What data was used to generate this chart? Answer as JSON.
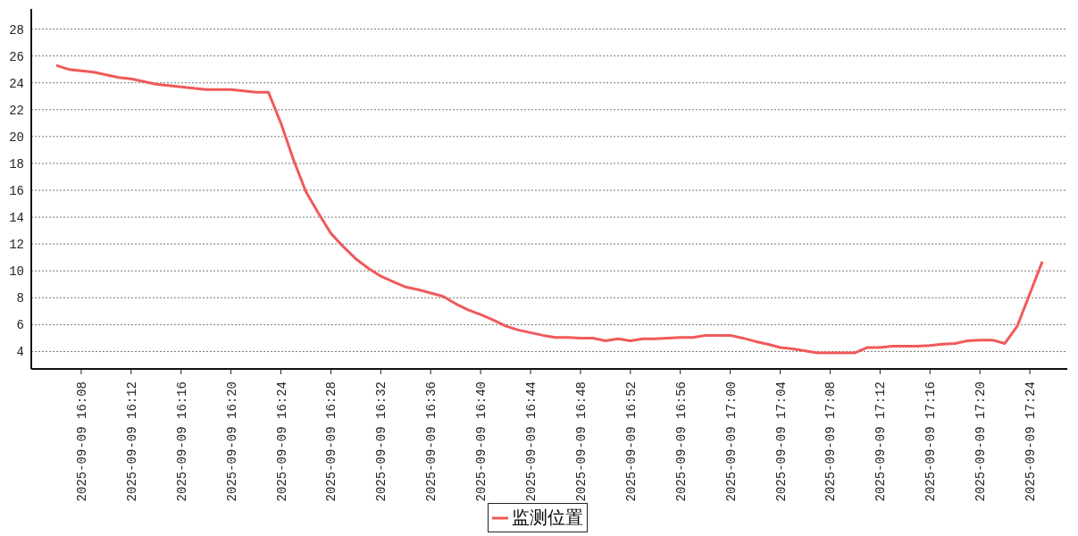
{
  "chart_data": {
    "type": "line",
    "x": [
      "2025-09-09T16:06",
      "2025-09-09T16:07",
      "2025-09-09T16:08",
      "2025-09-09T16:09",
      "2025-09-09T16:10",
      "2025-09-09T16:11",
      "2025-09-09T16:12",
      "2025-09-09T16:13",
      "2025-09-09T16:14",
      "2025-09-09T16:15",
      "2025-09-09T16:16",
      "2025-09-09T16:17",
      "2025-09-09T16:18",
      "2025-09-09T16:19",
      "2025-09-09T16:20",
      "2025-09-09T16:21",
      "2025-09-09T16:22",
      "2025-09-09T16:23",
      "2025-09-09T16:24",
      "2025-09-09T16:25",
      "2025-09-09T16:26",
      "2025-09-09T16:27",
      "2025-09-09T16:28",
      "2025-09-09T16:29",
      "2025-09-09T16:30",
      "2025-09-09T16:31",
      "2025-09-09T16:32",
      "2025-09-09T16:33",
      "2025-09-09T16:34",
      "2025-09-09T16:35",
      "2025-09-09T16:36",
      "2025-09-09T16:37",
      "2025-09-09T16:38",
      "2025-09-09T16:39",
      "2025-09-09T16:40",
      "2025-09-09T16:41",
      "2025-09-09T16:42",
      "2025-09-09T16:43",
      "2025-09-09T16:44",
      "2025-09-09T16:45",
      "2025-09-09T16:46",
      "2025-09-09T16:47",
      "2025-09-09T16:48",
      "2025-09-09T16:49",
      "2025-09-09T16:50",
      "2025-09-09T16:51",
      "2025-09-09T16:52",
      "2025-09-09T16:53",
      "2025-09-09T16:54",
      "2025-09-09T16:55",
      "2025-09-09T16:56",
      "2025-09-09T16:57",
      "2025-09-09T16:58",
      "2025-09-09T16:59",
      "2025-09-09T17:00",
      "2025-09-09T17:01",
      "2025-09-09T17:02",
      "2025-09-09T17:03",
      "2025-09-09T17:04",
      "2025-09-09T17:05",
      "2025-09-09T17:06",
      "2025-09-09T17:07",
      "2025-09-09T17:08",
      "2025-09-09T17:09",
      "2025-09-09T17:10",
      "2025-09-09T17:11",
      "2025-09-09T17:12",
      "2025-09-09T17:13",
      "2025-09-09T17:14",
      "2025-09-09T17:15",
      "2025-09-09T17:16",
      "2025-09-09T17:17",
      "2025-09-09T17:18",
      "2025-09-09T17:19",
      "2025-09-09T17:20",
      "2025-09-09T17:21",
      "2025-09-09T17:22",
      "2025-09-09T17:23",
      "2025-09-09T17:24",
      "2025-09-09T17:25"
    ],
    "series": [
      {
        "name": "监测位置",
        "color": "#f05a5a",
        "values": [
          25.3,
          25.0,
          24.9,
          24.8,
          24.6,
          24.4,
          24.3,
          24.1,
          23.9,
          23.8,
          23.7,
          23.6,
          23.5,
          23.5,
          23.5,
          23.4,
          23.3,
          23.3,
          21.0,
          18.3,
          15.9,
          14.3,
          12.8,
          11.8,
          10.9,
          10.2,
          9.6,
          9.2,
          8.8,
          8.6,
          8.35,
          8.1,
          7.55,
          7.1,
          6.75,
          6.35,
          5.9,
          5.6,
          5.4,
          5.2,
          5.05,
          5.05,
          5.0,
          5.0,
          4.8,
          4.95,
          4.8,
          4.95,
          4.95,
          5.0,
          5.05,
          5.05,
          5.2,
          5.2,
          5.2,
          5.0,
          4.75,
          4.55,
          4.3,
          4.2,
          4.05,
          3.9,
          3.9,
          3.9,
          3.9,
          4.3,
          4.3,
          4.4,
          4.4,
          4.4,
          4.45,
          4.55,
          4.6,
          4.8,
          4.85,
          4.85,
          4.6,
          5.9,
          8.3,
          10.7
        ]
      }
    ],
    "xlim": [
      "2025-09-09T16:04",
      "2025-09-09T17:27"
    ],
    "xticks": [
      {
        "value": "2025-09-09T16:08",
        "label": "2025-09-09 16:08"
      },
      {
        "value": "2025-09-09T16:12",
        "label": "2025-09-09 16:12"
      },
      {
        "value": "2025-09-09T16:16",
        "label": "2025-09-09 16:16"
      },
      {
        "value": "2025-09-09T16:20",
        "label": "2025-09-09 16:20"
      },
      {
        "value": "2025-09-09T16:24",
        "label": "2025-09-09 16:24"
      },
      {
        "value": "2025-09-09T16:28",
        "label": "2025-09-09 16:28"
      },
      {
        "value": "2025-09-09T16:32",
        "label": "2025-09-09 16:32"
      },
      {
        "value": "2025-09-09T16:36",
        "label": "2025-09-09 16:36"
      },
      {
        "value": "2025-09-09T16:40",
        "label": "2025-09-09 16:40"
      },
      {
        "value": "2025-09-09T16:44",
        "label": "2025-09-09 16:44"
      },
      {
        "value": "2025-09-09T16:48",
        "label": "2025-09-09 16:48"
      },
      {
        "value": "2025-09-09T16:52",
        "label": "2025-09-09 16:52"
      },
      {
        "value": "2025-09-09T16:56",
        "label": "2025-09-09 16:56"
      },
      {
        "value": "2025-09-09T17:00",
        "label": "2025-09-09 17:00"
      },
      {
        "value": "2025-09-09T17:04",
        "label": "2025-09-09 17:04"
      },
      {
        "value": "2025-09-09T17:08",
        "label": "2025-09-09 17:08"
      },
      {
        "value": "2025-09-09T17:12",
        "label": "2025-09-09 17:12"
      },
      {
        "value": "2025-09-09T17:16",
        "label": "2025-09-09 17:16"
      },
      {
        "value": "2025-09-09T17:20",
        "label": "2025-09-09 17:20"
      },
      {
        "value": "2025-09-09T17:24",
        "label": "2025-09-09 17:24"
      }
    ],
    "ylim": [
      2.7,
      29.5
    ],
    "yticks": [
      4,
      6,
      8,
      10,
      12,
      14,
      16,
      18,
      20,
      22,
      24,
      26,
      28
    ],
    "grid": "y",
    "legend": "bottom",
    "marker": "none",
    "line_style": "solid"
  }
}
